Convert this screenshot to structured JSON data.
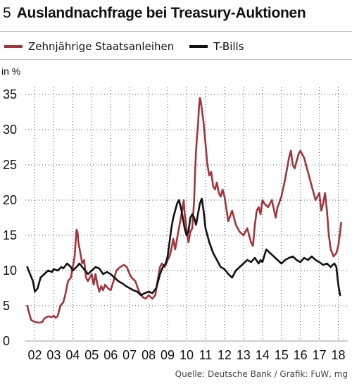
{
  "header": {
    "number": "5",
    "title": "Auslandnachfrage bei Treasury-Auktionen"
  },
  "footer": {
    "source": "Quelle: Deutsche Bank / Grafik: FuW, mg"
  },
  "colors": {
    "series_red": "#a4343a",
    "series_black": "#111111",
    "grid": "#444444",
    "axis": "#888888"
  },
  "chart_data": {
    "type": "line",
    "ylabel": "in %",
    "xlabel": "",
    "ylim": [
      0,
      35
    ],
    "y_ticks": [
      0,
      5,
      10,
      15,
      20,
      25,
      30,
      35
    ],
    "xlim": [
      2001.5,
      2018.5
    ],
    "x_ticks": [
      "02",
      "03",
      "04",
      "05",
      "06",
      "07",
      "08",
      "09",
      "10",
      "11",
      "12",
      "13",
      "14",
      "15",
      "16",
      "17",
      "18"
    ],
    "grid": "dotted",
    "legend": "top",
    "series": [
      {
        "name": "Zehnjährige Staatsanleihen",
        "color": "#a4343a",
        "x": [
          2001.6,
          2001.7,
          2001.8,
          2002.0,
          2002.2,
          2002.4,
          2002.5,
          2002.7,
          2002.9,
          2003.0,
          2003.1,
          2003.2,
          2003.35,
          2003.5,
          2003.6,
          2003.75,
          2003.9,
          2004.0,
          2004.1,
          2004.15,
          2004.2,
          2004.25,
          2004.3,
          2004.4,
          2004.5,
          2004.6,
          2004.7,
          2004.8,
          2005.0,
          2005.1,
          2005.2,
          2005.3,
          2005.4,
          2005.5,
          2005.6,
          2005.7,
          2005.85,
          2006.0,
          2006.15,
          2006.3,
          2006.5,
          2006.7,
          2006.85,
          2007.0,
          2007.1,
          2007.3,
          2007.5,
          2007.7,
          2007.85,
          2008.0,
          2008.2,
          2008.35,
          2008.5,
          2008.6,
          2008.7,
          2008.85,
          2009.0,
          2009.1,
          2009.2,
          2009.3,
          2009.4,
          2009.5,
          2009.6,
          2009.7,
          2009.8,
          2009.85,
          2009.9,
          2010.0,
          2010.1,
          2010.2,
          2010.3,
          2010.4,
          2010.45,
          2010.5,
          2010.55,
          2010.6,
          2010.65,
          2010.7,
          2010.75,
          2010.8,
          2010.9,
          2011.0,
          2011.1,
          2011.2,
          2011.3,
          2011.4,
          2011.5,
          2011.6,
          2011.7,
          2011.8,
          2011.9,
          2012.0,
          2012.2,
          2012.4,
          2012.6,
          2012.8,
          2013.0,
          2013.2,
          2013.4,
          2013.5,
          2013.6,
          2013.7,
          2013.8,
          2013.9,
          2014.0,
          2014.1,
          2014.3,
          2014.5,
          2014.7,
          2014.8,
          2015.0,
          2015.2,
          2015.4,
          2015.5,
          2015.6,
          2015.7,
          2015.9,
          2016.0,
          2016.2,
          2016.4,
          2016.6,
          2016.8,
          2017.0,
          2017.1,
          2017.2,
          2017.3,
          2017.4,
          2017.5,
          2017.6,
          2017.75,
          2017.9,
          2018.0,
          2018.1,
          2018.15
        ],
        "values": [
          5,
          4,
          3,
          2.7,
          2.6,
          2.7,
          3.2,
          3.5,
          3.4,
          3.6,
          3.3,
          3.5,
          5,
          5.5,
          6.5,
          8.5,
          9,
          10.5,
          12,
          14,
          15.8,
          15.5,
          14,
          12.5,
          11,
          11.5,
          9,
          8.5,
          9.5,
          8,
          9.5,
          8,
          7,
          7.8,
          7.2,
          8,
          7.5,
          7.2,
          8.5,
          10,
          10.5,
          10.8,
          10.5,
          9.5,
          9,
          8.5,
          7,
          6.2,
          6,
          6.5,
          6,
          6.5,
          9,
          10.5,
          11,
          10.5,
          11.5,
          12,
          13,
          14.5,
          13,
          14.5,
          16,
          17.5,
          19,
          20,
          18,
          16,
          14,
          15.5,
          16,
          20,
          24,
          27,
          29,
          30.5,
          33,
          34.5,
          34,
          33,
          31,
          28,
          25,
          23.5,
          24,
          22,
          21.5,
          22.5,
          21,
          20.5,
          21.5,
          20.5,
          17,
          18.5,
          16.5,
          15.5,
          15,
          16,
          14,
          13.5,
          16.5,
          18.5,
          19,
          18,
          20,
          19.5,
          19,
          20,
          17.5,
          19,
          20.5,
          23,
          26,
          27,
          25,
          24.5,
          26.5,
          27,
          26,
          24,
          22,
          20,
          21,
          18.5,
          19.5,
          21,
          18.5,
          15,
          13,
          12,
          12.5,
          13.5,
          15.5,
          16.8
        ]
      },
      {
        "name": "T-Bills",
        "color": "#111111",
        "x": [
          2001.6,
          2001.75,
          2001.9,
          2002.0,
          2002.15,
          2002.3,
          2002.5,
          2002.7,
          2002.9,
          2003.0,
          2003.2,
          2003.4,
          2003.5,
          2003.7,
          2003.9,
          2004.0,
          2004.2,
          2004.35,
          2004.5,
          2004.65,
          2004.8,
          2005.0,
          2005.2,
          2005.4,
          2005.6,
          2005.8,
          2006.0,
          2006.2,
          2006.4,
          2006.6,
          2006.8,
          2007.0,
          2007.2,
          2007.4,
          2007.6,
          2007.8,
          2008.0,
          2008.2,
          2008.4,
          2008.5,
          2008.6,
          2008.75,
          2008.9,
          2009.0,
          2009.1,
          2009.2,
          2009.3,
          2009.4,
          2009.5,
          2009.6,
          2009.7,
          2009.8,
          2009.9,
          2010.0,
          2010.1,
          2010.2,
          2010.3,
          2010.4,
          2010.5,
          2010.6,
          2010.7,
          2010.8,
          2010.9,
          2011.0,
          2011.2,
          2011.4,
          2011.6,
          2011.8,
          2012.0,
          2012.2,
          2012.4,
          2012.6,
          2012.8,
          2013.0,
          2013.2,
          2013.4,
          2013.6,
          2013.8,
          2013.9,
          2014.0,
          2014.2,
          2014.4,
          2014.6,
          2014.8,
          2015.0,
          2015.2,
          2015.4,
          2015.6,
          2015.8,
          2016.0,
          2016.2,
          2016.4,
          2016.6,
          2016.8,
          2017.0,
          2017.2,
          2017.4,
          2017.6,
          2017.7,
          2017.8,
          2017.9,
          2018.0,
          2018.1
        ],
        "values": [
          10.5,
          9.5,
          8.5,
          7,
          7.5,
          9,
          9.5,
          10,
          9.8,
          10.2,
          10,
          10.5,
          10.3,
          11,
          10.5,
          10,
          10.5,
          11,
          10.5,
          10,
          9.5,
          10,
          10.5,
          10.3,
          9.5,
          9.8,
          9.5,
          9,
          8.5,
          8.2,
          7.8,
          7.5,
          7.2,
          7,
          6.5,
          6.8,
          7,
          6.8,
          7.5,
          8.5,
          9.5,
          10.5,
          11,
          12,
          14,
          16,
          17.5,
          18.5,
          19.5,
          20,
          19,
          17.5,
          16,
          15,
          15.5,
          17.5,
          18,
          17.5,
          16.5,
          18,
          19.5,
          20.2,
          18.5,
          16,
          14,
          12.5,
          11.5,
          10.5,
          10.2,
          9.5,
          9,
          10,
          10.5,
          11,
          11.5,
          11.2,
          11.8,
          11,
          11.5,
          11.2,
          13,
          12.5,
          12,
          11.5,
          11,
          11.5,
          11.8,
          12,
          11.5,
          11.2,
          11.8,
          11.5,
          12,
          11.5,
          11.2,
          10.8,
          11,
          10.5,
          10.8,
          11,
          10.5,
          8,
          6.5
        ]
      }
    ]
  }
}
